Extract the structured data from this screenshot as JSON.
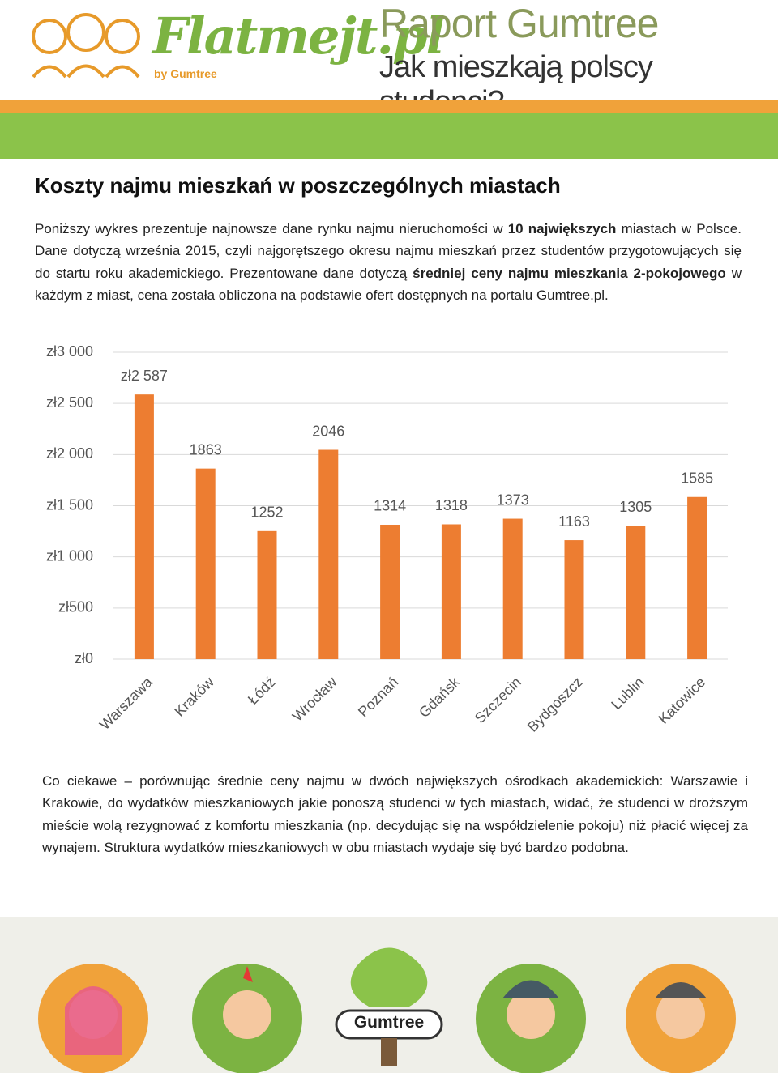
{
  "header": {
    "brand": "Flatmejt.pl",
    "brand_by": "by Gumtree",
    "title": "Raport Gumtree",
    "subtitle": "Jak mieszkają polscy studenci?"
  },
  "section_title": "Koszty najmu mieszkań  w poszczególnych miastach",
  "intro": [
    {
      "text": "Poniższy wykres prezentuje najnowsze dane rynku najmu nieruchomości w ",
      "bold": false
    },
    {
      "text": "10 największych",
      "bold": true
    },
    {
      "text": " miastach w Polsce. Dane dotyczą września 2015, czyli najgorętszego okresu najmu mieszkań przez studentów przygotowujących się do startu roku akademickiego.  Prezentowane dane dotyczą ",
      "bold": false
    },
    {
      "text": "średniej ceny najmu mieszkania 2-pokojowego",
      "bold": true
    },
    {
      "text": " w każdym z miast, cena została obliczona na podstawie ofert dostępnych na portalu Gumtree.pl.",
      "bold": false
    }
  ],
  "chart_data": {
    "type": "bar",
    "categories": [
      "Warszawa",
      "Kraków",
      "Łódź",
      "Wrocław",
      "Poznań",
      "Gdańsk",
      "Szczecin",
      "Bydgoszcz",
      "Lublin",
      "Katowice"
    ],
    "values": [
      2587,
      1863,
      1252,
      2046,
      1314,
      1318,
      1373,
      1163,
      1305,
      1585
    ],
    "value_labels": [
      "zł2 587",
      "1863",
      "1252",
      "2046",
      "1314",
      "1318",
      "1373",
      "1163",
      "1305",
      "1585"
    ],
    "color": "#ed7d31",
    "ylim": [
      0,
      3000
    ],
    "yticks": [
      {
        "value": 0,
        "label": "zł0"
      },
      {
        "value": 500,
        "label": "zł500"
      },
      {
        "value": 1000,
        "label": "zł1 000"
      },
      {
        "value": 1500,
        "label": "zł1 500"
      },
      {
        "value": 2000,
        "label": "zł2 000"
      },
      {
        "value": 2500,
        "label": "zł2 500"
      },
      {
        "value": 3000,
        "label": "zł3 000"
      }
    ],
    "grid": true
  },
  "conclusion": "Co ciekawe – porównując średnie ceny najmu w dwóch największych ośrodkach akademickich: Warszawie i Krakowie, do wydatków mieszkaniowych jakie ponoszą studenci w tych miastach, widać, że studenci w droższym mieście wolą rezygnować z komfortu mieszkania (np. decydując się na współdzielenie pokoju) niż płacić więcej za wynajem.  Struktura wydatków mieszkaniowych w obu miastach wydaje się być bardzo podobna.",
  "footer": {
    "logo_text": "Gumtree"
  }
}
